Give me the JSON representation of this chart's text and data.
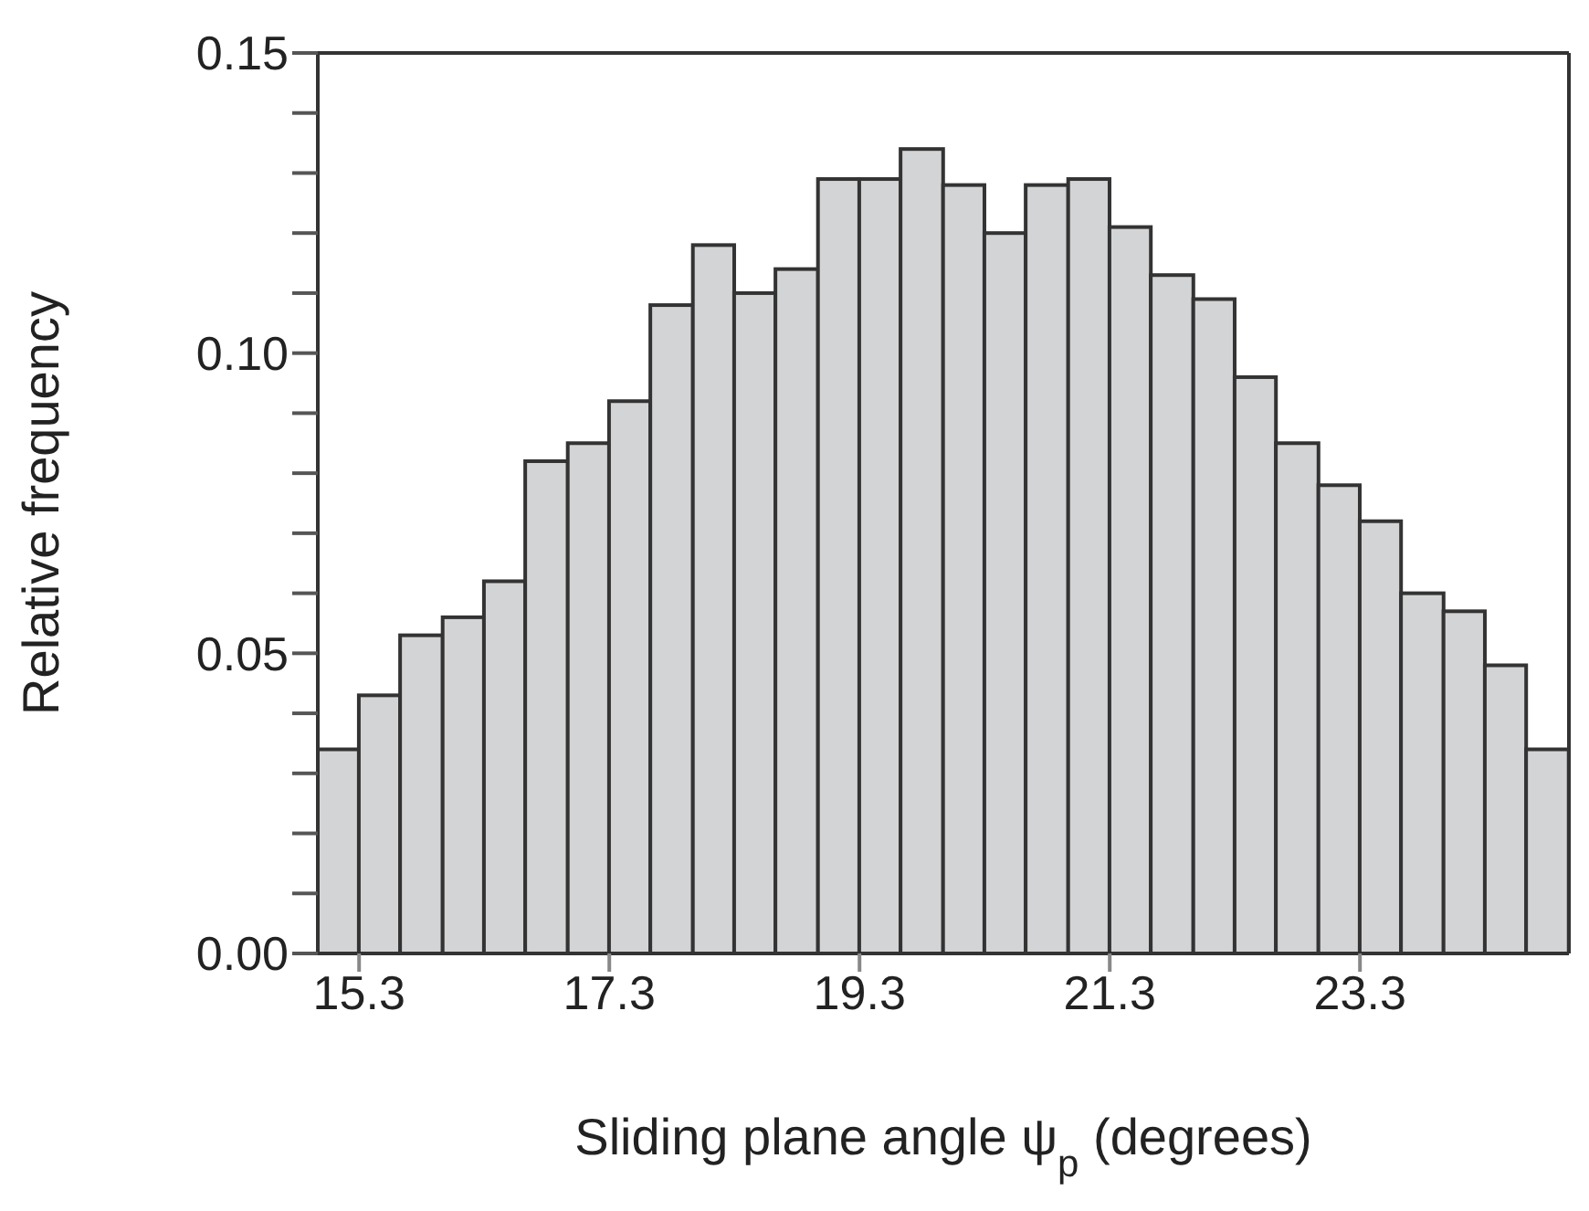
{
  "chart_data": {
    "type": "histogram",
    "xlabel": "Sliding plane angle ψ$_{p}$ (degrees)",
    "ylabel": "Relative frequency",
    "bins": [
      14.97,
      15.3,
      15.63,
      15.97,
      16.3,
      16.63,
      16.97,
      17.3,
      17.63,
      17.97,
      18.3,
      18.63,
      18.97,
      19.3,
      19.63,
      19.97,
      20.3,
      20.63,
      20.97,
      21.3,
      21.63,
      21.97,
      22.3,
      22.63,
      22.97,
      23.3,
      23.63,
      23.97,
      24.3,
      24.63,
      24.97
    ],
    "values": [
      0.034,
      0.043,
      0.053,
      0.056,
      0.062,
      0.082,
      0.085,
      0.092,
      0.108,
      0.118,
      0.11,
      0.114,
      0.129,
      0.129,
      0.134,
      0.128,
      0.12,
      0.128,
      0.129,
      0.121,
      0.113,
      0.109,
      0.096,
      0.085,
      0.078,
      0.072,
      0.06,
      0.057,
      0.048,
      0.034
    ],
    "color": "#d3d4d6",
    "xlim": [
      14.97,
      24.97
    ],
    "xticks": [
      15.3,
      17.3,
      19.3,
      21.3,
      23.3
    ],
    "ylim": [
      0,
      0.15
    ],
    "yticks": [
      {
        "value": 0,
        "label": "0.00"
      },
      {
        "value": 0.01,
        "label": null
      },
      {
        "value": 0.02,
        "label": null
      },
      {
        "value": 0.03,
        "label": null
      },
      {
        "value": 0.04,
        "label": null
      },
      {
        "value": 0.05,
        "label": "0.05"
      },
      {
        "value": 0.06,
        "label": null
      },
      {
        "value": 0.07,
        "label": null
      },
      {
        "value": 0.08,
        "label": null
      },
      {
        "value": 0.09,
        "label": null
      },
      {
        "value": 0.1,
        "label": "0.10"
      },
      {
        "value": 0.11,
        "label": null
      },
      {
        "value": 0.12,
        "label": null
      },
      {
        "value": 0.13,
        "label": null
      },
      {
        "value": 0.14,
        "label": null
      },
      {
        "value": 0.15,
        "label": "0.15"
      }
    ],
    "grid": false
  }
}
